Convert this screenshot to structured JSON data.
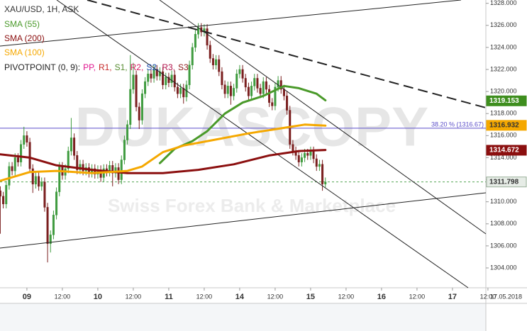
{
  "chart_data": {
    "type": "candlestick",
    "legend_title": "XAU/USD, 1H, ASK",
    "x": [
      15,
      16,
      17,
      18,
      19,
      20,
      21,
      22,
      23,
      24,
      25,
      26,
      27,
      28,
      29,
      30,
      31,
      32,
      33,
      34,
      35,
      36,
      37,
      38,
      39,
      40,
      41,
      42,
      43,
      44,
      45,
      46,
      47,
      48,
      49,
      50,
      51,
      52,
      53,
      54,
      55,
      56,
      57,
      58,
      59,
      60,
      61,
      62,
      63,
      64,
      65,
      66,
      67,
      68,
      69,
      70,
      71,
      72,
      73,
      74,
      75,
      76,
      77,
      78,
      79,
      80,
      81,
      82,
      83,
      84,
      85,
      86,
      87,
      88,
      89,
      90,
      91,
      92,
      93,
      94,
      95,
      96,
      97,
      98,
      99,
      100,
      101,
      102,
      103,
      104,
      105,
      106,
      107,
      108,
      109,
      110,
      111,
      112,
      113,
      114,
      115,
      116,
      117,
      118,
      119,
      120,
      121,
      122,
      123,
      124,
      125
    ],
    "open": [
      1311.0,
      1310.5,
      1309.8,
      1311.5,
      1313.2,
      1312.8,
      1314.0,
      1313.6,
      1315.2,
      1316.0,
      1315.4,
      1313.0,
      1311.6,
      1312.3,
      1311.4,
      1311.8,
      1309.5,
      1306.2,
      1307.0,
      1308.8,
      1310.9,
      1313.2,
      1312.4,
      1313.0,
      1314.6,
      1315.8,
      1314.2,
      1312.9,
      1313.4,
      1312.8,
      1313.1,
      1312.6,
      1313.0,
      1312.5,
      1312.9,
      1312.2,
      1313.0,
      1312.7,
      1313.3,
      1312.6,
      1313.1,
      1312.0,
      1313.8,
      1315.6,
      1317.0,
      1320.2,
      1321.5,
      1318.6,
      1317.4,
      1319.8,
      1320.9,
      1321.6,
      1321.2,
      1322.0,
      1321.4,
      1321.8,
      1320.6,
      1321.3,
      1320.8,
      1321.5,
      1320.4,
      1319.8,
      1320.3,
      1319.5,
      1320.6,
      1322.4,
      1324.0,
      1325.2,
      1325.8,
      1325.4,
      1325.7,
      1324.2,
      1323.0,
      1322.4,
      1322.9,
      1321.8,
      1320.6,
      1319.8,
      1320.5,
      1319.6,
      1320.3,
      1321.6,
      1322.0,
      1321.2,
      1320.4,
      1319.6,
      1320.5,
      1321.2,
      1320.3,
      1319.8,
      1320.9,
      1320.2,
      1319.0,
      1318.7,
      1320.4,
      1321.0,
      1320.2,
      1319.6,
      1318.3,
      1315.2,
      1314.6,
      1314.2,
      1313.6,
      1314.0,
      1314.4,
      1314.2,
      1314.6,
      1313.9,
      1313.2,
      1313.4,
      1311.6
    ],
    "high": [
      1311.4,
      1310.9,
      1311.9,
      1313.6,
      1313.6,
      1314.4,
      1314.4,
      1315.6,
      1316.8,
      1316.4,
      1315.8,
      1313.4,
      1312.7,
      1312.7,
      1312.2,
      1312.2,
      1309.9,
      1307.4,
      1309.2,
      1311.3,
      1313.6,
      1313.6,
      1313.4,
      1315.0,
      1317.6,
      1316.2,
      1314.6,
      1313.8,
      1313.8,
      1313.5,
      1313.5,
      1313.4,
      1313.4,
      1313.3,
      1313.3,
      1313.4,
      1313.4,
      1313.7,
      1313.7,
      1313.5,
      1313.5,
      1314.2,
      1316.0,
      1317.4,
      1323.3,
      1322.6,
      1321.9,
      1319.0,
      1320.2,
      1321.3,
      1322.0,
      1322.0,
      1322.4,
      1322.4,
      1322.2,
      1322.2,
      1321.7,
      1321.7,
      1321.9,
      1321.9,
      1320.8,
      1320.7,
      1320.7,
      1321.0,
      1322.8,
      1324.4,
      1325.6,
      1326.2,
      1326.2,
      1326.1,
      1326.1,
      1324.6,
      1323.4,
      1323.3,
      1323.3,
      1322.2,
      1321.0,
      1320.9,
      1320.9,
      1320.7,
      1322.0,
      1322.4,
      1322.4,
      1321.6,
      1320.8,
      1320.9,
      1321.6,
      1321.6,
      1320.7,
      1321.3,
      1321.3,
      1320.6,
      1319.4,
      1320.8,
      1321.4,
      1321.4,
      1320.6,
      1320.0,
      1318.7,
      1315.6,
      1315.0,
      1314.6,
      1314.4,
      1314.8,
      1314.8,
      1315.0,
      1315.0,
      1314.3,
      1313.8,
      1313.8,
      1312.2
    ],
    "low": [
      1307.1,
      1309.4,
      1309.4,
      1311.1,
      1312.4,
      1312.4,
      1313.2,
      1313.2,
      1314.8,
      1315.0,
      1312.6,
      1310.8,
      1311.2,
      1311.0,
      1311.0,
      1309.1,
      1304.5,
      1305.4,
      1306.6,
      1308.4,
      1310.5,
      1312.0,
      1312.0,
      1312.6,
      1314.2,
      1313.8,
      1312.5,
      1312.5,
      1312.4,
      1312.4,
      1312.2,
      1312.2,
      1312.1,
      1312.1,
      1311.8,
      1311.8,
      1312.3,
      1312.3,
      1311.4,
      1312.2,
      1311.6,
      1311.6,
      1313.4,
      1315.2,
      1316.6,
      1319.8,
      1318.2,
      1316.6,
      1317.0,
      1319.4,
      1320.5,
      1320.8,
      1320.8,
      1321.0,
      1321.0,
      1320.2,
      1320.2,
      1320.4,
      1320.4,
      1320.0,
      1319.4,
      1319.4,
      1318.9,
      1319.1,
      1320.2,
      1322.0,
      1323.6,
      1324.8,
      1325.0,
      1325.0,
      1323.8,
      1322.6,
      1322.0,
      1322.0,
      1321.4,
      1320.2,
      1319.4,
      1319.4,
      1318.8,
      1319.2,
      1319.9,
      1321.2,
      1320.8,
      1320.0,
      1319.2,
      1319.2,
      1320.1,
      1319.9,
      1319.4,
      1319.4,
      1319.8,
      1318.6,
      1318.3,
      1318.3,
      1320.0,
      1319.8,
      1319.2,
      1317.9,
      1314.8,
      1314.2,
      1313.8,
      1313.2,
      1313.2,
      1313.6,
      1313.8,
      1313.8,
      1313.5,
      1312.8,
      1312.8,
      1311.0,
      1311.3
    ],
    "close": [
      1310.5,
      1309.8,
      1311.5,
      1313.2,
      1312.8,
      1314.0,
      1313.6,
      1315.2,
      1316.0,
      1315.4,
      1313.0,
      1311.6,
      1312.3,
      1311.4,
      1311.8,
      1309.5,
      1306.2,
      1307.0,
      1308.8,
      1310.9,
      1313.2,
      1312.4,
      1313.0,
      1314.6,
      1315.8,
      1314.2,
      1312.9,
      1313.4,
      1312.8,
      1313.1,
      1312.6,
      1313.0,
      1312.5,
      1312.9,
      1312.2,
      1313.0,
      1312.7,
      1313.3,
      1312.6,
      1313.1,
      1312.0,
      1313.8,
      1315.6,
      1317.0,
      1320.2,
      1321.5,
      1318.6,
      1317.4,
      1319.8,
      1320.9,
      1321.6,
      1321.2,
      1322.0,
      1321.4,
      1321.8,
      1320.6,
      1321.3,
      1320.8,
      1321.5,
      1320.4,
      1319.8,
      1320.3,
      1319.5,
      1320.6,
      1322.4,
      1324.0,
      1325.2,
      1325.8,
      1325.4,
      1325.7,
      1324.2,
      1323.0,
      1322.4,
      1322.9,
      1321.8,
      1320.6,
      1319.8,
      1320.5,
      1319.6,
      1320.3,
      1321.6,
      1322.0,
      1321.2,
      1320.4,
      1319.6,
      1320.5,
      1321.2,
      1320.3,
      1319.8,
      1320.9,
      1320.2,
      1319.0,
      1318.7,
      1320.4,
      1321.0,
      1320.2,
      1319.6,
      1318.3,
      1315.2,
      1314.6,
      1314.2,
      1313.6,
      1314.0,
      1314.4,
      1314.2,
      1314.6,
      1313.9,
      1313.2,
      1313.4,
      1311.6,
      1311.8
    ],
    "up_color": "#3f9b3f",
    "down_color": "#7a1f1f",
    "series": [
      {
        "name": "SMA (55)",
        "color": "#4a9a2a",
        "x": [
          69,
          74,
          80,
          85,
          91,
          97,
          104,
          111,
          116,
          122,
          125
        ],
        "values": [
          1313.5,
          1314.8,
          1315.5,
          1316.4,
          1318.0,
          1319.0,
          1319.6,
          1320.5,
          1320.3,
          1319.8,
          1319.2
        ]
      },
      {
        "name": "SMA (200)",
        "color": "#8b0f0f",
        "x": [
          15,
          25,
          34,
          46,
          58,
          70,
          82,
          94,
          106,
          116,
          125
        ],
        "values": [
          1314.3,
          1314.0,
          1313.3,
          1312.9,
          1312.6,
          1312.6,
          1312.9,
          1313.4,
          1314.2,
          1314.6,
          1314.7
        ]
      },
      {
        "name": "SMA (100)",
        "color": "#f5a800",
        "x": [
          15,
          25,
          34,
          46,
          58,
          63,
          70,
          77,
          87,
          99,
          111,
          118,
          125
        ],
        "values": [
          1311.9,
          1312.7,
          1312.8,
          1312.6,
          1312.8,
          1313.2,
          1314.5,
          1315.1,
          1315.6,
          1316.2,
          1316.7,
          1317.0,
          1316.9
        ]
      }
    ],
    "pivot_legend": {
      "label": "PIVOTPOINT (0, 9):",
      "items": [
        {
          "name": "PP,",
          "color": "#e0158f"
        },
        {
          "name": "R1,",
          "color": "#c62828"
        },
        {
          "name": "S1,",
          "color": "#558b2f"
        },
        {
          "name": "R2,",
          "color": "#d81b60"
        },
        {
          "name": "S2,",
          "color": "#1e4fb3"
        },
        {
          "name": "R3,",
          "color": "#b0124a"
        },
        {
          "name": "S3",
          "color": "#8e1a1a"
        }
      ]
    },
    "fib": {
      "level": 1316.67,
      "label": "38.20 % (1316.67)",
      "color": "#5b4fc9"
    },
    "price_labels": [
      {
        "value": 1319.153,
        "color": "#3e8e1e",
        "text_color": "#ffffff"
      },
      {
        "value": 1316.932,
        "color": "#f5a800",
        "text_color": "#333333"
      },
      {
        "value": 1314.672,
        "color": "#8b0f0f",
        "text_color": "#ffffff"
      },
      {
        "value": 1311.798,
        "color": "#e6ece6",
        "text_color": "#333333"
      }
    ],
    "current_line_color": "#3f9b3f",
    "date": "17.05.2018",
    "watermark": [
      "DUKASCOPY",
      "Swiss Forex Bank & Marketplace"
    ],
    "xlim": [
      14.9,
      179.3
    ],
    "ylim": [
      1302.2,
      1328.3
    ],
    "xticks": [
      {
        "value": 24,
        "label": "09"
      },
      {
        "value": 36,
        "label": "12:00"
      },
      {
        "value": 48,
        "label": "10"
      },
      {
        "value": 60,
        "label": "12:00"
      },
      {
        "value": 72,
        "label": "11"
      },
      {
        "value": 84,
        "label": "12:00"
      },
      {
        "value": 96,
        "label": "14"
      },
      {
        "value": 108,
        "label": "12:00"
      },
      {
        "value": 120,
        "label": "15"
      },
      {
        "value": 132,
        "label": "12:00"
      },
      {
        "value": 144,
        "label": "16"
      },
      {
        "value": 156,
        "label": "12:00"
      },
      {
        "value": 168,
        "label": "17"
      },
      {
        "value": 180,
        "label": "12:00"
      }
    ],
    "yticks": [
      {
        "value": 1304,
        "label": "1304.000"
      },
      {
        "value": 1306,
        "label": "1306.000"
      },
      {
        "value": 1308,
        "label": "1308.000"
      },
      {
        "value": 1310,
        "label": "1310.000"
      },
      {
        "value": 1312,
        "label": "1312.000"
      },
      {
        "value": 1314,
        "label": "1314.000"
      },
      {
        "value": 1316,
        "label": "1316.000"
      },
      {
        "value": 1318,
        "label": "1318.000"
      },
      {
        "value": 1320,
        "label": "1320.000"
      },
      {
        "value": 1322,
        "label": "1322.000"
      },
      {
        "value": 1324,
        "label": "1324.000"
      },
      {
        "value": 1326,
        "label": "1326.000"
      },
      {
        "value": 1328,
        "label": "1328.000"
      }
    ],
    "grid": false
  }
}
